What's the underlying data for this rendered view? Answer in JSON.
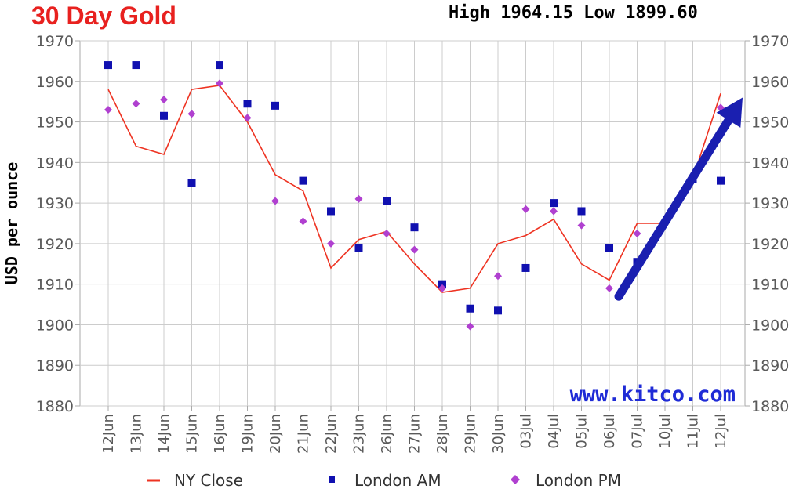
{
  "header": {
    "title": "30 Day Gold",
    "high_low": "High 1964.15 Low 1899.60"
  },
  "watermark": "www.kitco.com",
  "colors": {
    "title": "#e8211f",
    "ny_close": "#ee3322",
    "london_am": "#1010b0",
    "london_pm": "#b040d0",
    "arrow": "#1a1fb0",
    "grid": "#cccccc"
  },
  "chart_data": {
    "type": "line",
    "ylabel": "USD per ounce",
    "ylim": [
      1880,
      1970
    ],
    "yticks": [
      1880,
      1890,
      1900,
      1910,
      1920,
      1930,
      1940,
      1950,
      1960,
      1970
    ],
    "grid": true,
    "legend_position": "bottom",
    "categories": [
      "12Jun",
      "13Jun",
      "14Jun",
      "15Jun",
      "16Jun",
      "19Jun",
      "20Jun",
      "21Jun",
      "22Jun",
      "23Jun",
      "26Jun",
      "27Jun",
      "28Jun",
      "29Jun",
      "30Jun",
      "03Jul",
      "04Jul",
      "05Jul",
      "06Jul",
      "07Jul",
      "10Jul",
      "11Jul",
      "12Jul"
    ],
    "series": [
      {
        "name": "NY Close",
        "style": "line",
        "values": [
          1958,
          1944,
          1942,
          1958,
          1959,
          1950,
          1937,
          1933,
          1914,
          1921,
          1923,
          1915,
          1908,
          1909,
          1920,
          1922,
          1926,
          1915,
          1911,
          1925,
          1925,
          1936,
          1957
        ]
      },
      {
        "name": "London AM",
        "style": "square",
        "values": [
          1964,
          1964,
          1951.5,
          1935,
          1964,
          1954.5,
          1954,
          1935.5,
          1928,
          1919,
          1930.5,
          1924,
          1910,
          1904,
          1903.5,
          1914,
          1930,
          1928,
          1919,
          1915.5,
          null,
          1936,
          1935.5
        ]
      },
      {
        "name": "London PM",
        "style": "diamond",
        "values": [
          1953,
          1954.5,
          1955.5,
          1952,
          1959.5,
          1951,
          1930.5,
          1925.5,
          1920,
          1931,
          1922.5,
          1918.5,
          1909,
          1899.6,
          1912,
          1928.5,
          1928,
          1924.5,
          1909,
          1922.5,
          null,
          null,
          1953.5
        ]
      }
    ],
    "annotation": {
      "shape": "arrow",
      "from": [
        "06Jul",
        1907
      ],
      "to": [
        "12Jul",
        1956
      ]
    }
  }
}
